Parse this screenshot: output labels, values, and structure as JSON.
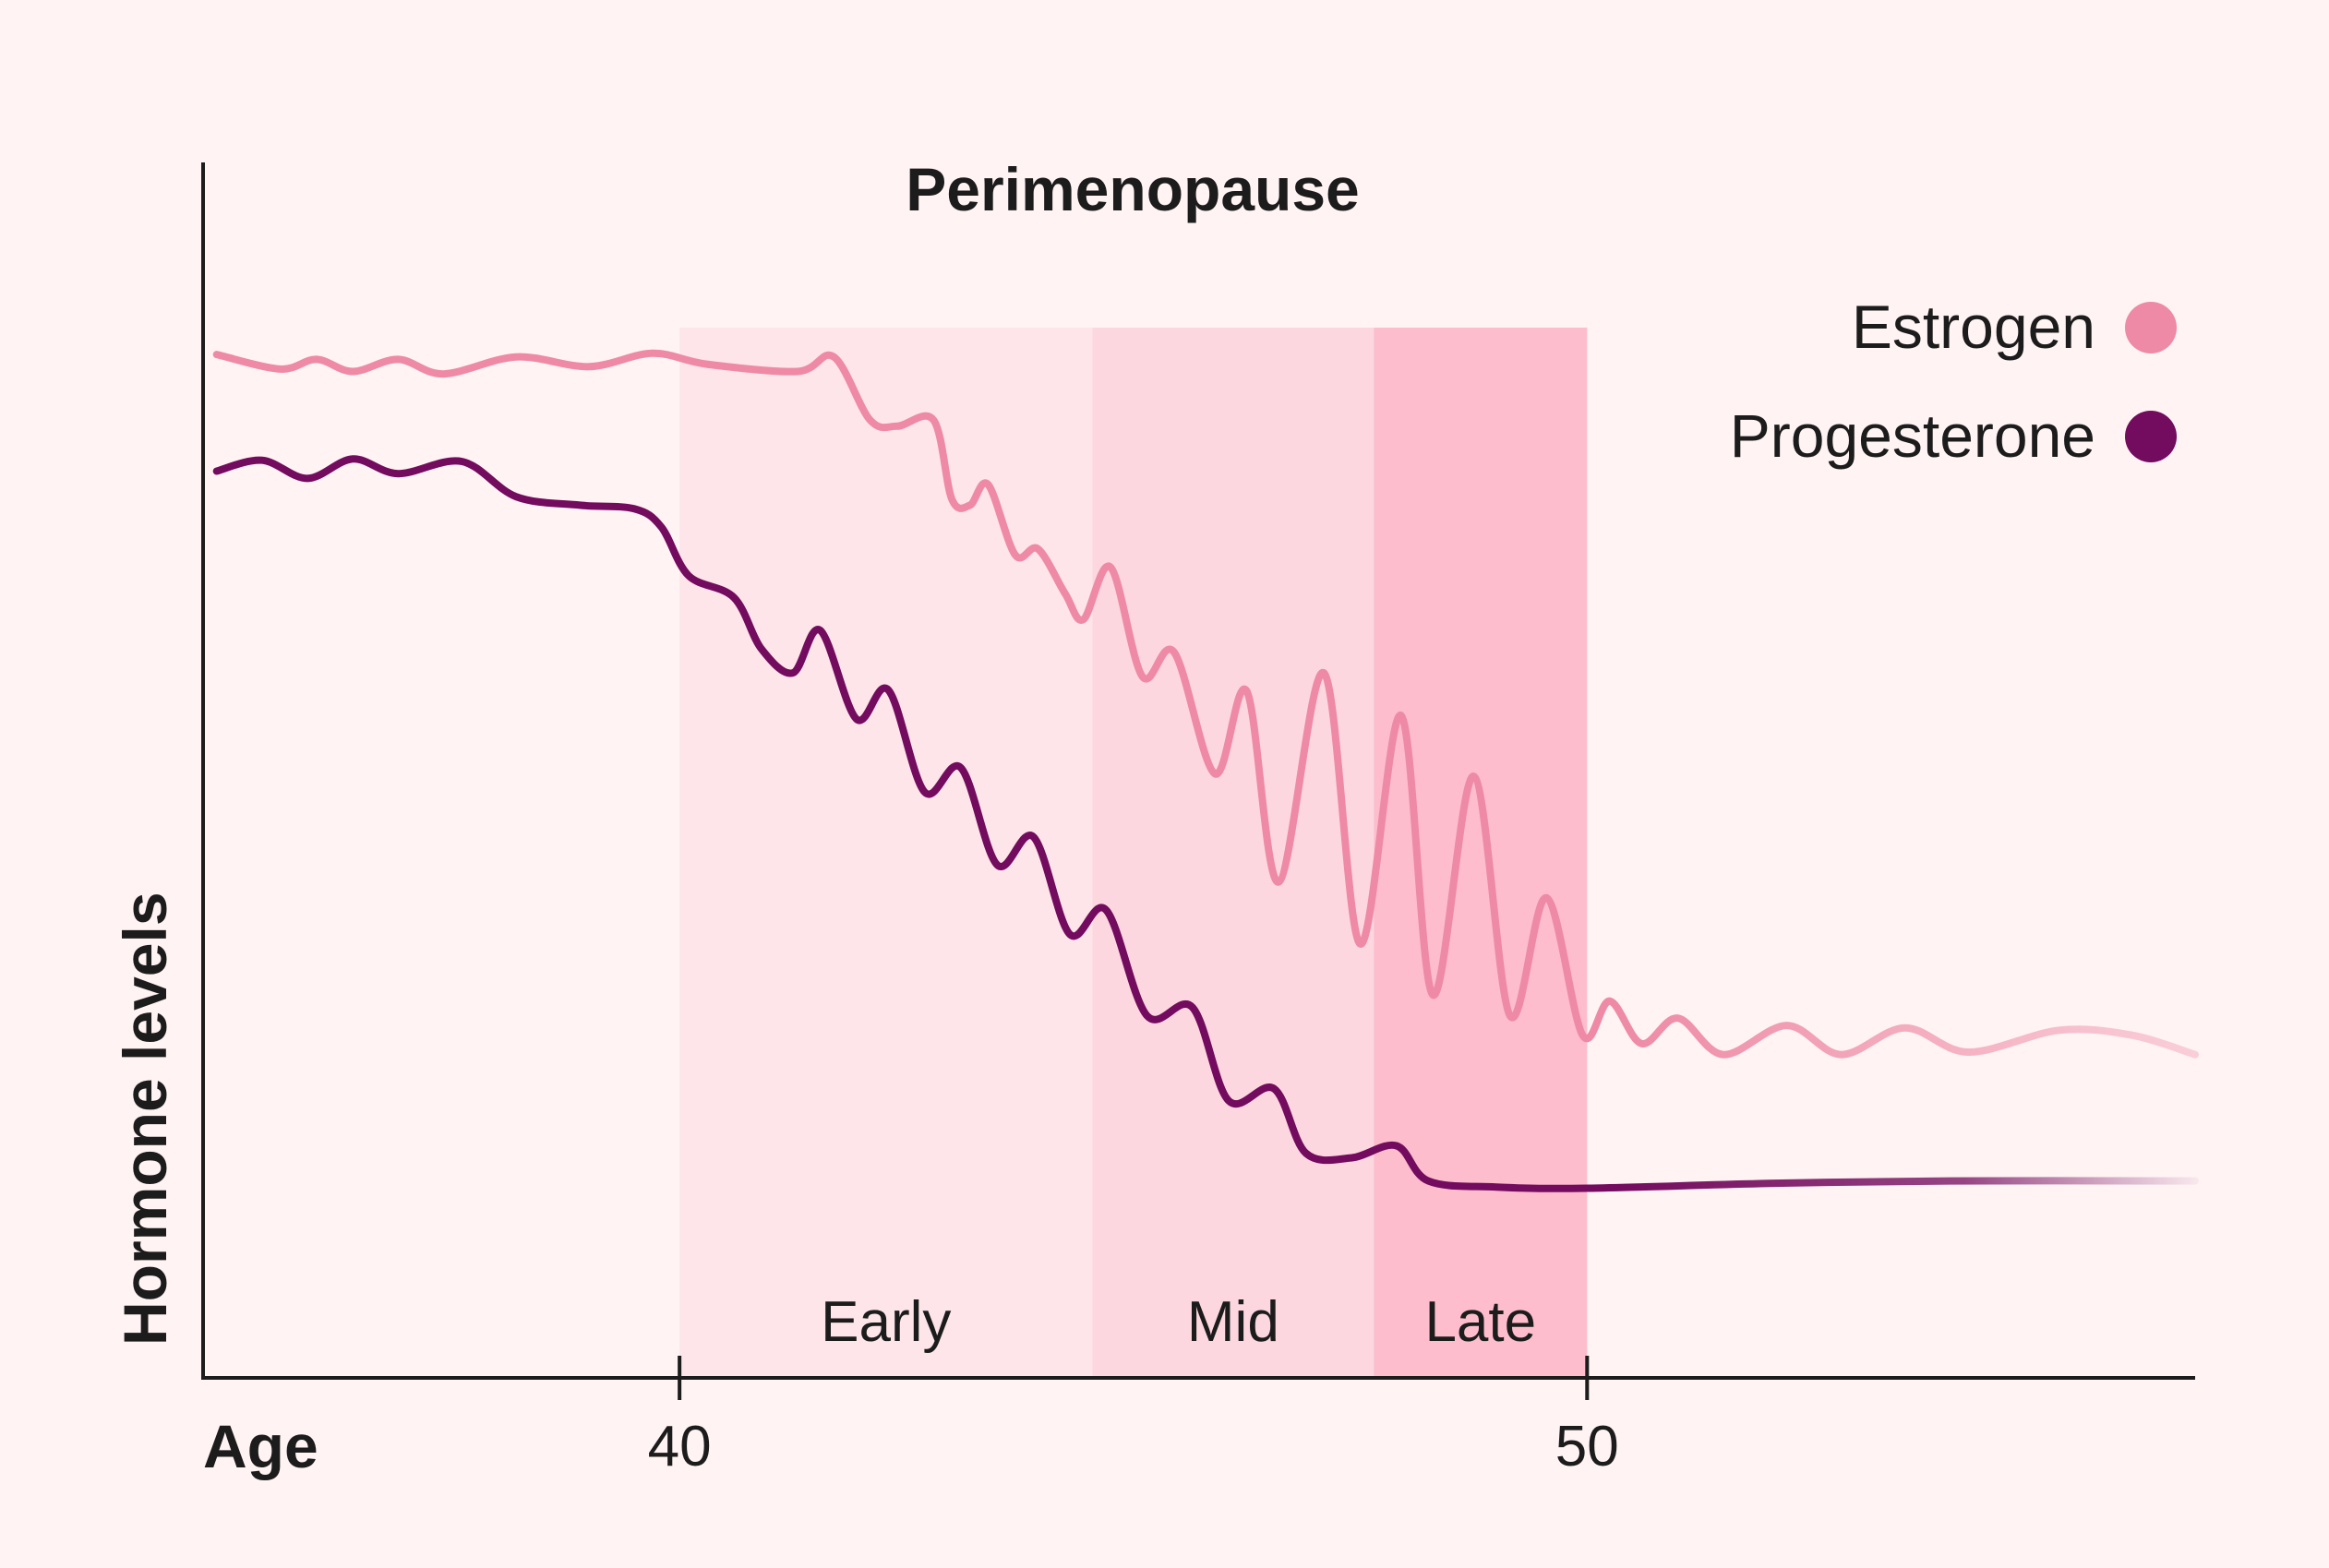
{
  "chart_data": {
    "type": "line",
    "title": "Perimenopause",
    "xlabel": "Age",
    "ylabel": "Hormone levels",
    "x_ticks": [
      "40",
      "50"
    ],
    "xlim": [
      34.75,
      56.7
    ],
    "ylim": [
      0,
      100
    ],
    "grid": false,
    "legend_position": "top-right",
    "phases": [
      {
        "name": "Early",
        "start": 40,
        "end": 44.55,
        "color": "#fde5ea"
      },
      {
        "name": "Mid",
        "start": 44.55,
        "end": 47.65,
        "color": "#fdd7e0"
      },
      {
        "name": "Late",
        "start": 47.65,
        "end": 50,
        "color": "#fdbdcd"
      }
    ],
    "series": [
      {
        "name": "Estrogen",
        "color": "#ee8aa5",
        "points": [
          [
            34.9,
            84.2
          ],
          [
            35.6,
            83.0
          ],
          [
            36.0,
            83.8
          ],
          [
            36.4,
            82.8
          ],
          [
            36.9,
            83.8
          ],
          [
            37.4,
            82.6
          ],
          [
            38.2,
            84.0
          ],
          [
            39.0,
            83.2
          ],
          [
            39.7,
            84.3
          ],
          [
            40.3,
            83.4
          ],
          [
            41.3,
            82.8
          ],
          [
            41.7,
            84.0
          ],
          [
            42.1,
            78.8
          ],
          [
            42.4,
            78.3
          ],
          [
            42.8,
            78.8
          ],
          [
            43.0,
            72.3
          ],
          [
            43.2,
            71.8
          ],
          [
            43.4,
            73.5
          ],
          [
            43.7,
            67.7
          ],
          [
            43.95,
            68.2
          ],
          [
            44.25,
            64.5
          ],
          [
            44.45,
            62.4
          ],
          [
            44.75,
            66.7
          ],
          [
            45.1,
            57.7
          ],
          [
            45.45,
            59.7
          ],
          [
            45.9,
            49.7
          ],
          [
            46.25,
            56.5
          ],
          [
            46.6,
            40.8
          ],
          [
            47.1,
            58.0
          ],
          [
            47.5,
            35.7
          ],
          [
            47.95,
            54.5
          ],
          [
            48.3,
            31.5
          ],
          [
            48.75,
            49.5
          ],
          [
            49.15,
            29.8
          ],
          [
            49.55,
            39.5
          ],
          [
            49.95,
            28.2
          ],
          [
            50.25,
            31.0
          ],
          [
            50.6,
            27.5
          ],
          [
            51.0,
            29.6
          ],
          [
            51.5,
            26.6
          ],
          [
            52.2,
            29.0
          ],
          [
            52.8,
            26.6
          ],
          [
            53.5,
            28.8
          ],
          [
            54.2,
            26.8
          ],
          [
            55.2,
            28.6
          ],
          [
            56.0,
            28.2
          ],
          [
            56.7,
            26.6
          ]
        ]
      },
      {
        "name": "Progesterone",
        "color": "#730b5e",
        "points": [
          [
            34.9,
            74.6
          ],
          [
            35.4,
            75.5
          ],
          [
            35.9,
            74.0
          ],
          [
            36.4,
            75.6
          ],
          [
            36.9,
            74.4
          ],
          [
            37.6,
            75.4
          ],
          [
            38.2,
            72.5
          ],
          [
            38.9,
            71.8
          ],
          [
            39.5,
            71.5
          ],
          [
            39.8,
            70.0
          ],
          [
            40.1,
            66.0
          ],
          [
            40.6,
            64.2
          ],
          [
            40.9,
            60.0
          ],
          [
            41.25,
            58.0
          ],
          [
            41.55,
            61.5
          ],
          [
            41.95,
            54.2
          ],
          [
            42.3,
            56.6
          ],
          [
            42.7,
            48.2
          ],
          [
            43.1,
            50.2
          ],
          [
            43.5,
            42.2
          ],
          [
            43.9,
            44.5
          ],
          [
            44.3,
            36.5
          ],
          [
            44.7,
            38.5
          ],
          [
            45.15,
            29.8
          ],
          [
            45.65,
            30.5
          ],
          [
            46.05,
            22.8
          ],
          [
            46.55,
            23.8
          ],
          [
            46.9,
            18.5
          ],
          [
            47.4,
            18.1
          ],
          [
            47.9,
            19.1
          ],
          [
            48.25,
            16.2
          ],
          [
            49.0,
            15.7
          ],
          [
            50.0,
            15.6
          ],
          [
            52.0,
            16.0
          ],
          [
            54.0,
            16.2
          ],
          [
            56.7,
            16.2
          ]
        ]
      }
    ]
  },
  "colors": {
    "background": "#fff3f4",
    "axis": "#1c1c1c"
  }
}
